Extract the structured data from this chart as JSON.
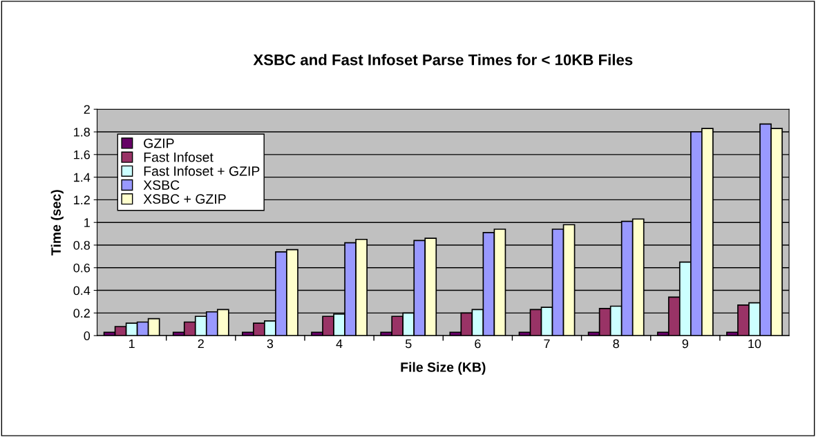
{
  "chart_data": {
    "type": "bar",
    "title": "XSBC and Fast Infoset Parse Times for < 10KB Files",
    "xlabel": "File Size (KB)",
    "ylabel": "Time (sec)",
    "categories": [
      "1",
      "2",
      "3",
      "4",
      "5",
      "6",
      "7",
      "8",
      "9",
      "10"
    ],
    "series": [
      {
        "name": "GZIP",
        "color": "#660066",
        "values": [
          0.03,
          0.03,
          0.03,
          0.03,
          0.03,
          0.03,
          0.03,
          0.03,
          0.03,
          0.03
        ]
      },
      {
        "name": "Fast Infoset",
        "color": "#993366",
        "values": [
          0.08,
          0.12,
          0.11,
          0.17,
          0.17,
          0.2,
          0.23,
          0.24,
          0.34,
          0.27
        ]
      },
      {
        "name": "Fast Infoset + GZIP",
        "color": "#ccffff",
        "values": [
          0.11,
          0.17,
          0.13,
          0.19,
          0.2,
          0.23,
          0.25,
          0.26,
          0.65,
          0.29
        ]
      },
      {
        "name": "XSBC",
        "color": "#9999ff",
        "values": [
          0.12,
          0.21,
          0.74,
          0.82,
          0.84,
          0.91,
          0.94,
          1.01,
          1.8,
          1.87
        ]
      },
      {
        "name": "XSBC + GZIP",
        "color": "#ffffcc",
        "values": [
          0.15,
          0.23,
          0.76,
          0.85,
          0.86,
          0.94,
          0.98,
          1.03,
          1.83,
          1.83
        ]
      }
    ],
    "ylim": [
      0,
      2
    ],
    "yticks": [
      0,
      0.2,
      0.4,
      0.6,
      0.8,
      1,
      1.2,
      1.4,
      1.6,
      1.8,
      2
    ],
    "grid": "y",
    "legend": "top left"
  }
}
